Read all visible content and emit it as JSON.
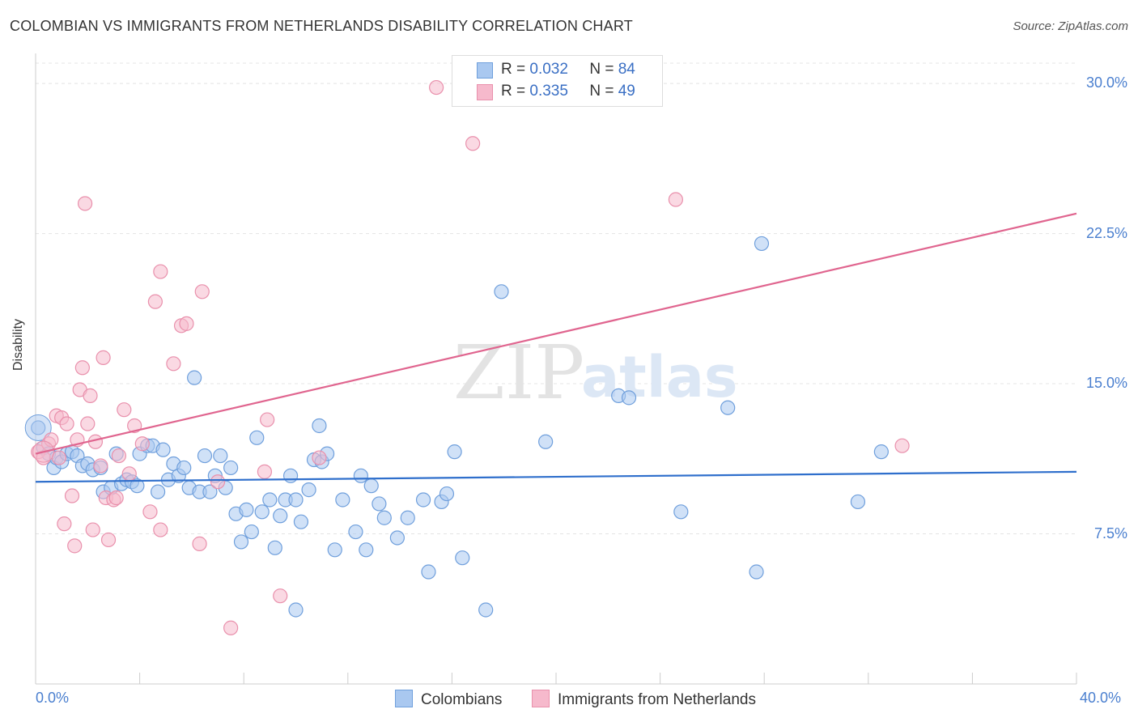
{
  "title": "COLOMBIAN VS IMMIGRANTS FROM NETHERLANDS DISABILITY CORRELATION CHART",
  "source": "Source: ZipAtlas.com",
  "watermark": {
    "zip": "ZIP",
    "atlas": "atlas"
  },
  "legend": {
    "r_label": "R =",
    "n_label": "N =",
    "series1_r": "0.032",
    "series1_n": "84",
    "series2_r": "0.335",
    "series2_n": "49"
  },
  "bottom_legend": {
    "series1": "Colombians",
    "series2": "Immigrants from Netherlands"
  },
  "colors": {
    "blue_fill": "#a9c8f0",
    "blue_stroke": "#6f9fdc",
    "blue_line": "#2f6fcc",
    "pink_fill": "#f6b9cc",
    "pink_stroke": "#e990ac",
    "pink_line": "#e0658f"
  },
  "chart_data": {
    "type": "scatter",
    "title": "COLOMBIAN VS IMMIGRANTS FROM NETHERLANDS DISABILITY CORRELATION CHART",
    "xlabel": "",
    "ylabel": "Disability",
    "xlim": [
      0,
      40
    ],
    "ylim": [
      0,
      31.5
    ],
    "x_tick_labels": [
      "0.0%",
      "40.0%"
    ],
    "y_ticks": [
      7.5,
      15.0,
      22.5,
      30.0
    ],
    "y_tick_labels": [
      "7.5%",
      "15.0%",
      "22.5%",
      "30.0%"
    ],
    "series": [
      {
        "name": "Colombians",
        "r": 0.032,
        "n": 84,
        "trend": {
          "x": [
            0,
            40
          ],
          "y": [
            10.1,
            10.6
          ]
        },
        "points": [
          [
            0.1,
            12.8
          ],
          [
            0.3,
            11.8
          ],
          [
            0.5,
            11.5
          ],
          [
            0.7,
            10.8
          ],
          [
            0.8,
            11.3
          ],
          [
            1.0,
            11.1
          ],
          [
            1.2,
            11.5
          ],
          [
            1.4,
            11.6
          ],
          [
            1.6,
            11.4
          ],
          [
            1.8,
            10.9
          ],
          [
            2.0,
            11.0
          ],
          [
            2.2,
            10.7
          ],
          [
            2.5,
            10.8
          ],
          [
            2.6,
            9.6
          ],
          [
            2.9,
            9.8
          ],
          [
            3.1,
            11.5
          ],
          [
            3.3,
            10.0
          ],
          [
            3.5,
            10.2
          ],
          [
            3.7,
            10.1
          ],
          [
            3.9,
            9.9
          ],
          [
            4.0,
            11.5
          ],
          [
            4.3,
            11.9
          ],
          [
            4.5,
            11.9
          ],
          [
            4.7,
            9.6
          ],
          [
            4.9,
            11.7
          ],
          [
            5.1,
            10.2
          ],
          [
            5.3,
            11.0
          ],
          [
            5.5,
            10.4
          ],
          [
            5.7,
            10.8
          ],
          [
            5.9,
            9.8
          ],
          [
            6.1,
            15.3
          ],
          [
            6.3,
            9.6
          ],
          [
            6.5,
            11.4
          ],
          [
            6.7,
            9.6
          ],
          [
            6.9,
            10.4
          ],
          [
            7.1,
            11.4
          ],
          [
            7.3,
            9.8
          ],
          [
            7.5,
            10.8
          ],
          [
            7.7,
            8.5
          ],
          [
            7.9,
            7.1
          ],
          [
            8.1,
            8.7
          ],
          [
            8.3,
            7.6
          ],
          [
            8.5,
            12.3
          ],
          [
            8.7,
            8.6
          ],
          [
            9.0,
            9.2
          ],
          [
            9.2,
            6.8
          ],
          [
            9.4,
            8.4
          ],
          [
            9.6,
            9.2
          ],
          [
            9.8,
            10.4
          ],
          [
            10.0,
            9.2
          ],
          [
            10.2,
            8.1
          ],
          [
            10.5,
            9.7
          ],
          [
            10.7,
            11.2
          ],
          [
            10.9,
            12.9
          ],
          [
            11.0,
            11.1
          ],
          [
            11.2,
            11.5
          ],
          [
            11.5,
            6.7
          ],
          [
            11.8,
            9.2
          ],
          [
            12.3,
            7.6
          ],
          [
            12.5,
            10.4
          ],
          [
            12.7,
            6.7
          ],
          [
            12.9,
            9.9
          ],
          [
            13.2,
            9.0
          ],
          [
            13.4,
            8.3
          ],
          [
            13.9,
            7.3
          ],
          [
            14.3,
            8.3
          ],
          [
            14.9,
            9.2
          ],
          [
            15.1,
            5.6
          ],
          [
            15.6,
            9.1
          ],
          [
            15.8,
            9.5
          ],
          [
            16.1,
            11.6
          ],
          [
            16.4,
            6.3
          ],
          [
            17.3,
            3.7
          ],
          [
            17.9,
            19.6
          ],
          [
            19.6,
            12.1
          ],
          [
            22.4,
            14.4
          ],
          [
            22.8,
            14.3
          ],
          [
            24.8,
            8.6
          ],
          [
            26.6,
            13.8
          ],
          [
            27.7,
            5.6
          ],
          [
            27.9,
            22.0
          ],
          [
            31.6,
            9.1
          ],
          [
            32.5,
            11.6
          ],
          [
            10.0,
            3.7
          ]
        ]
      },
      {
        "name": "Immigrants from Netherlands",
        "r": 0.335,
        "n": 49,
        "trend": {
          "x": [
            0,
            40
          ],
          "y": [
            11.5,
            23.5
          ]
        },
        "points": [
          [
            0.1,
            11.6
          ],
          [
            0.3,
            11.3
          ],
          [
            0.5,
            12.0
          ],
          [
            0.6,
            12.2
          ],
          [
            0.8,
            13.4
          ],
          [
            0.9,
            11.3
          ],
          [
            1.0,
            13.3
          ],
          [
            1.2,
            13.0
          ],
          [
            1.1,
            8.0
          ],
          [
            1.4,
            9.4
          ],
          [
            1.5,
            6.9
          ],
          [
            1.6,
            12.2
          ],
          [
            1.7,
            14.7
          ],
          [
            1.8,
            15.8
          ],
          [
            1.9,
            24.0
          ],
          [
            2.1,
            14.4
          ],
          [
            2.2,
            7.7
          ],
          [
            2.3,
            12.1
          ],
          [
            2.5,
            10.9
          ],
          [
            2.6,
            16.3
          ],
          [
            2.7,
            9.3
          ],
          [
            2.8,
            7.2
          ],
          [
            3.0,
            9.2
          ],
          [
            3.1,
            9.3
          ],
          [
            3.2,
            11.4
          ],
          [
            3.4,
            13.7
          ],
          [
            3.6,
            10.5
          ],
          [
            3.8,
            12.9
          ],
          [
            4.1,
            12.0
          ],
          [
            4.4,
            8.6
          ],
          [
            4.6,
            19.1
          ],
          [
            4.8,
            20.6
          ],
          [
            4.8,
            7.7
          ],
          [
            5.3,
            16.0
          ],
          [
            5.6,
            17.9
          ],
          [
            5.8,
            18.0
          ],
          [
            6.3,
            7.0
          ],
          [
            6.4,
            19.6
          ],
          [
            7.0,
            10.1
          ],
          [
            7.5,
            2.8
          ],
          [
            8.8,
            10.6
          ],
          [
            8.9,
            13.2
          ],
          [
            9.4,
            4.4
          ],
          [
            10.9,
            11.3
          ],
          [
            15.4,
            29.8
          ],
          [
            16.8,
            27.0
          ],
          [
            24.6,
            24.2
          ],
          [
            33.3,
            11.9
          ],
          [
            2.0,
            13.0
          ]
        ]
      }
    ]
  }
}
